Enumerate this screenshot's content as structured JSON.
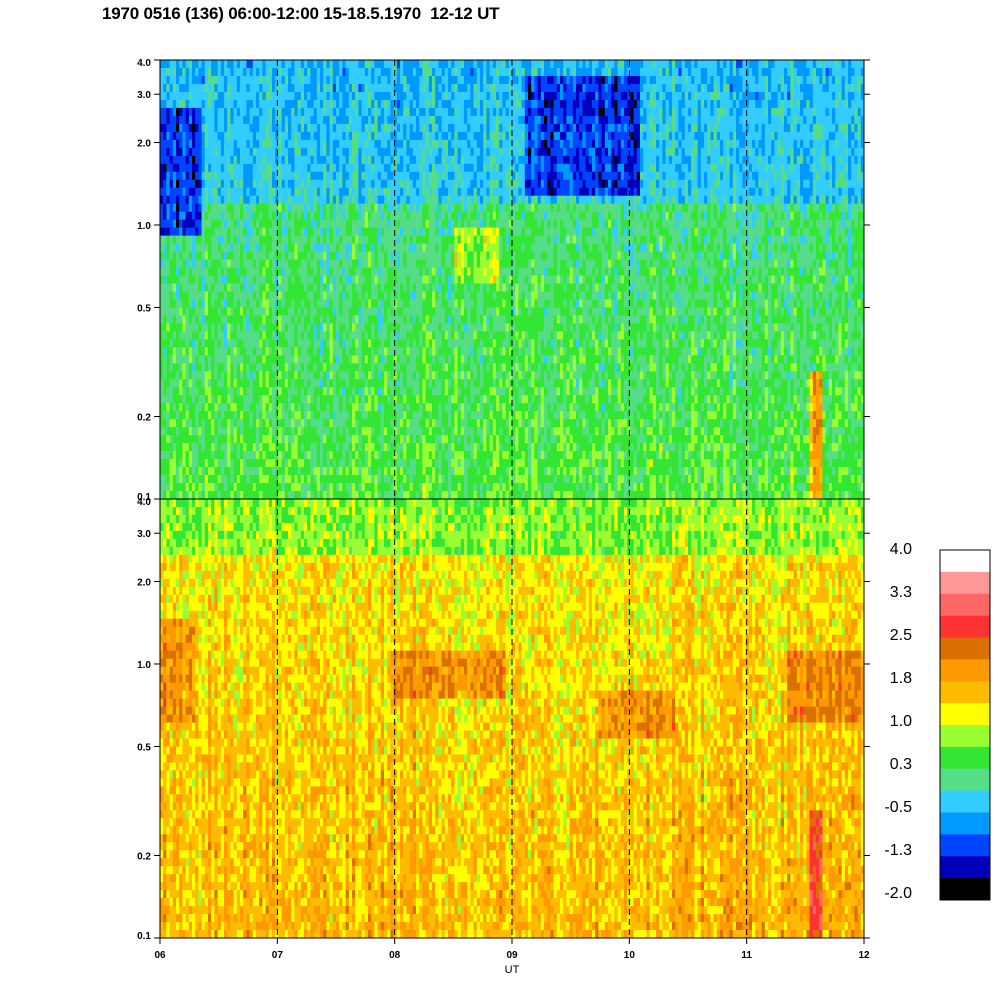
{
  "title": "1970 0516 (136) 06:00-12:00 15-18.5.1970  12-12 UT",
  "chart_data": {
    "type": "heatmap",
    "title": "1970 0516 (136) 06:00-12:00 15-18.5.1970  12-12 UT",
    "xlabel": "UT",
    "x_ticks": [
      "06",
      "07",
      "08",
      "09",
      "10",
      "11",
      "12"
    ],
    "x_range": [
      6,
      12
    ],
    "y_scale": "log",
    "y_range": [
      0.1,
      4.0
    ],
    "y_ticks": [
      "0.1",
      "0.2",
      "0.5",
      "1.0",
      "2.0",
      "3.0",
      "4.0"
    ],
    "y_tick_values": [
      0.1,
      0.2,
      0.5,
      1.0,
      2.0,
      3.0,
      4.0
    ],
    "grid": "vertical dashed lines at each hour",
    "panels": [
      {
        "name": "top",
        "dominant_range": [
          -1.3,
          1.0
        ],
        "dominant_levels": [
          "green",
          "light green",
          "teal",
          "blue",
          "yellow"
        ],
        "features": [
          {
            "time": [
              6.0,
              6.35
            ],
            "freq": [
              0.9,
              2.6
            ],
            "value": -1.3
          },
          {
            "time": [
              8.5,
              8.9
            ],
            "freq": [
              0.6,
              1.0
            ],
            "value": 1.0
          },
          {
            "time": [
              9.1,
              10.1
            ],
            "freq": [
              1.3,
              3.5
            ],
            "value": -1.3
          },
          {
            "time": [
              11.55,
              11.65
            ],
            "freq": [
              0.1,
              0.3
            ],
            "value": 1.8
          }
        ]
      },
      {
        "name": "bottom",
        "dominant_range": [
          1.0,
          2.5
        ],
        "dominant_levels": [
          "orange",
          "light orange",
          "yellow",
          "dark orange"
        ],
        "features": [
          {
            "time": [
              6.0,
              6.3
            ],
            "freq": [
              0.6,
              1.5
            ],
            "value": 2.1
          },
          {
            "time": [
              8.0,
              8.95
            ],
            "freq": [
              0.75,
              1.1
            ],
            "value": 2.1
          },
          {
            "time": [
              9.75,
              10.4
            ],
            "freq": [
              0.55,
              0.8
            ],
            "value": 2.1
          },
          {
            "time": [
              11.35,
              12.0
            ],
            "freq": [
              0.6,
              1.1
            ],
            "value": 2.1
          },
          {
            "time": [
              11.55,
              11.65
            ],
            "freq": [
              0.1,
              0.3
            ],
            "value": 2.7
          }
        ]
      }
    ],
    "colorbar": {
      "labels": [
        "4.0",
        "3.3",
        "2.5",
        "1.8",
        "1.0",
        "0.3",
        "-0.5",
        "-1.3",
        "-2.0"
      ],
      "colors": [
        "#ffffff",
        "#ff9999",
        "#ff6666",
        "#ff3333",
        "#d97000",
        "#ff9900",
        "#ffbb00",
        "#ffff00",
        "#99ff33",
        "#33e633",
        "#55dd88",
        "#33ccff",
        "#0099ff",
        "#0044ff",
        "#0000bb",
        "#000000"
      ]
    }
  }
}
